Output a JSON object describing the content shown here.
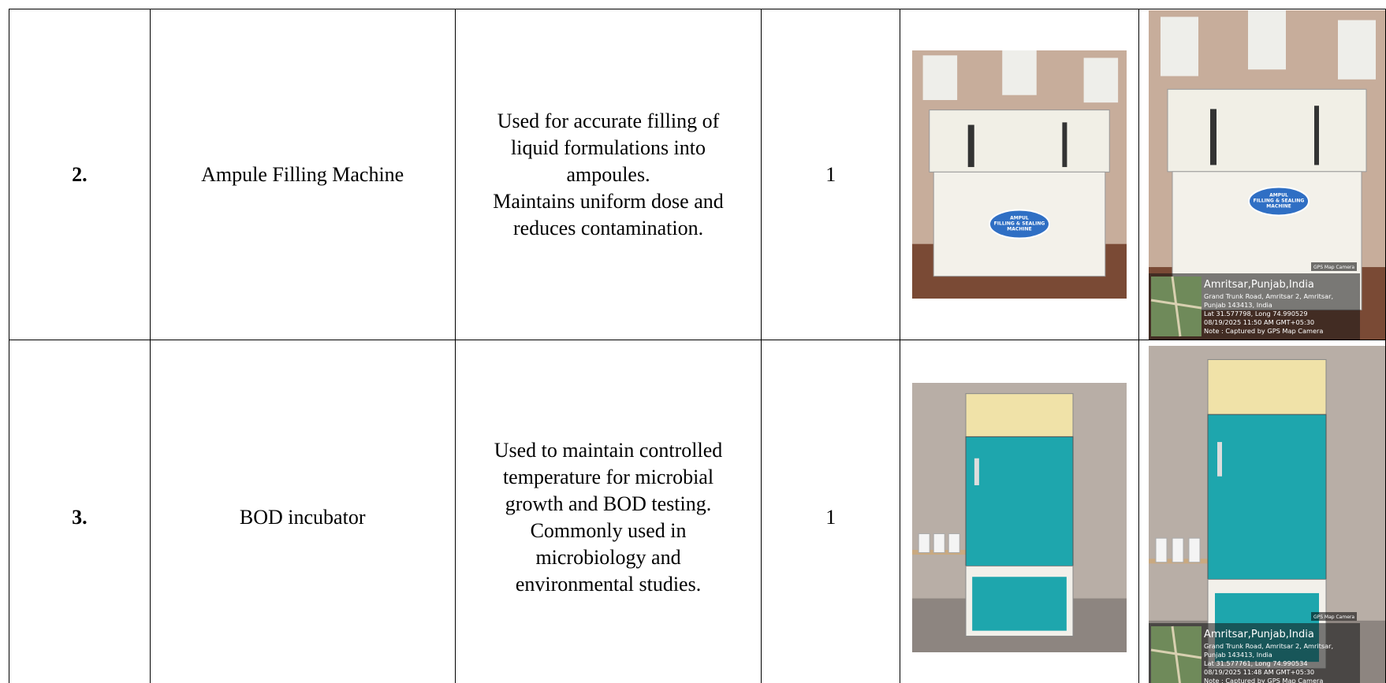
{
  "table": {
    "rows": [
      {
        "serial": "2.",
        "name": "Ampule Filling Machine",
        "description": [
          "Used for accurate filling of",
          "liquid formulations into",
          "ampoules.",
          "Maintains uniform dose and",
          "reduces contamination."
        ],
        "quantity": 1,
        "photo_label": [
          "AMPUL",
          "FILLING & SEALING",
          "MACHINE"
        ],
        "badge": "GPS Map Camera",
        "geotag": {
          "place": "Amritsar,Punjab,India",
          "lines": [
            "Grand Trunk Road, Amritsar 2, Amritsar,",
            "Punjab 143413, India",
            "Lat 31.577798, Long 74.990529",
            "08/19/2025 11:50 AM GMT+05:30",
            "Note : Captured by GPS Map Camera"
          ]
        }
      },
      {
        "serial": "3.",
        "name": "BOD incubator",
        "description": [
          "Used to maintain controlled",
          "temperature for microbial",
          "growth and BOD testing.",
          "Commonly used in",
          "microbiology and",
          "environmental studies."
        ],
        "quantity": 1,
        "badge": "GPS Map Camera",
        "geotag": {
          "place": "Amritsar,Punjab,India",
          "lines": [
            "Grand Trunk Road, Amritsar 2, Amritsar,",
            "Punjab 143413, India",
            "Lat 31.577761, Long 74.990534",
            "08/19/2025 11:48 AM GMT+05:30",
            "Note : Captured by GPS Map Camera"
          ]
        }
      }
    ]
  }
}
